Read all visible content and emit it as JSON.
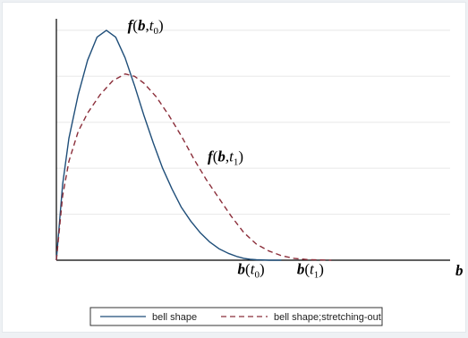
{
  "chart_data": {
    "type": "line",
    "title": "",
    "xlabel": "b",
    "ylabel": "",
    "xlim": [
      0,
      6.3
    ],
    "ylim": [
      0,
      1.05
    ],
    "grid": true,
    "legend": "bottom",
    "series": [
      {
        "name": "bell shape",
        "color": "#1f4e79",
        "dash": "solid",
        "x": [
          0.0,
          0.1,
          0.2,
          0.35,
          0.5,
          0.65,
          0.8,
          0.95,
          1.1,
          1.25,
          1.4,
          1.55,
          1.7,
          1.85,
          2.0,
          2.15,
          2.3,
          2.45,
          2.6,
          2.75,
          2.9,
          3.0,
          3.1,
          3.2,
          3.3,
          3.4,
          3.6
        ],
        "y": [
          0.0,
          0.33,
          0.53,
          0.72,
          0.87,
          0.97,
          1.0,
          0.97,
          0.88,
          0.76,
          0.63,
          0.51,
          0.4,
          0.31,
          0.23,
          0.17,
          0.12,
          0.08,
          0.05,
          0.03,
          0.015,
          0.008,
          0.004,
          0.002,
          0.001,
          0.0,
          0.0
        ]
      },
      {
        "name": "bell shape;stretching-out",
        "color": "#8b2e3a",
        "dash": "dashed",
        "x": [
          0.0,
          0.1,
          0.2,
          0.35,
          0.5,
          0.7,
          0.9,
          1.1,
          1.25,
          1.4,
          1.6,
          1.8,
          2.0,
          2.2,
          2.4,
          2.6,
          2.8,
          3.0,
          3.2,
          3.4,
          3.6,
          3.8,
          4.0,
          4.2,
          4.4
        ],
        "y": [
          0.0,
          0.28,
          0.43,
          0.56,
          0.64,
          0.72,
          0.78,
          0.81,
          0.8,
          0.77,
          0.71,
          0.63,
          0.54,
          0.44,
          0.35,
          0.27,
          0.19,
          0.12,
          0.07,
          0.04,
          0.02,
          0.008,
          0.003,
          0.001,
          0.0
        ]
      }
    ],
    "annotations": [
      {
        "text_bold": "f",
        "open": "(",
        "var": "b",
        "comma": ",",
        "t": "t",
        "sub": "0",
        "close": ")",
        "x": 1.14,
        "y": 1.0
      },
      {
        "text_bold": "f",
        "open": "(",
        "var": "b",
        "comma": ",",
        "t": "t",
        "sub": "1",
        "close": ")",
        "x": 2.42,
        "y": 0.43
      },
      {
        "text_bold": "b",
        "open": "(",
        "t": "t",
        "sub": "0",
        "close": ")",
        "x": 2.9,
        "y": -0.06
      },
      {
        "text_bold": "b",
        "open": "(",
        "t": "t",
        "sub": "1",
        "close": ")",
        "x": 3.85,
        "y": -0.06
      }
    ]
  }
}
